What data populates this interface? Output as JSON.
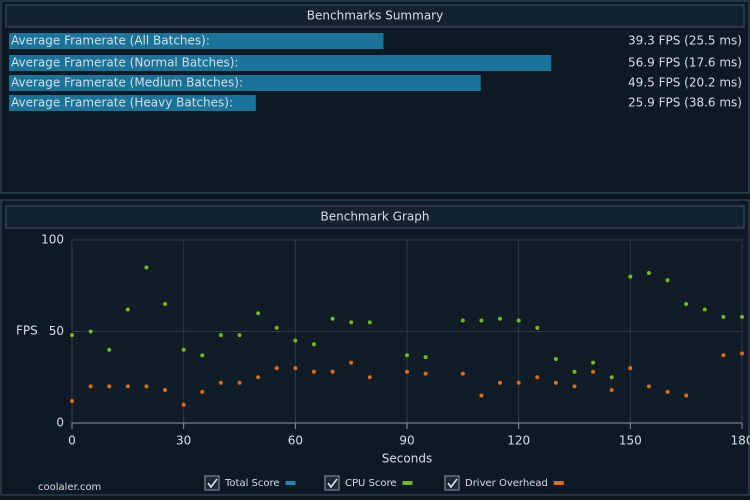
{
  "summary": {
    "title": "Benchmarks Summary",
    "rows": [
      {
        "label": "Average Framerate (All Batches):",
        "fps": 39.3,
        "value_label": "39.3 FPS (25.5 ms)"
      },
      {
        "label": "Average Framerate (Normal Batches):",
        "fps": 56.9,
        "value_label": "56.9 FPS (17.6 ms)"
      },
      {
        "label": "Average Framerate (Medium Batches):",
        "fps": 49.5,
        "value_label": "49.5 FPS (20.2 ms)"
      },
      {
        "label": "Average Framerate (Heavy Batches):",
        "fps": 25.9,
        "value_label": "25.9 FPS (38.6 ms)"
      }
    ]
  },
  "watermark": "coolaler.com",
  "chart_data": {
    "type": "scatter",
    "title": "Benchmark Graph",
    "x_label": "Seconds",
    "y_label": "FPS",
    "x": [
      0,
      5,
      10,
      15,
      20,
      25,
      30,
      35,
      40,
      45,
      50,
      55,
      60,
      65,
      70,
      75,
      80,
      85,
      90,
      95,
      100,
      105,
      110,
      115,
      120,
      125,
      130,
      135,
      140,
      145,
      150,
      155,
      160,
      165,
      170,
      175,
      180
    ],
    "series": [
      {
        "name": "Total Score",
        "color": "#1a8ab5",
        "values": [
          null,
          null,
          null,
          null,
          null,
          null,
          null,
          null,
          null,
          null,
          null,
          null,
          null,
          null,
          null,
          null,
          null,
          null,
          null,
          null,
          null,
          null,
          null,
          null,
          null,
          null,
          null,
          null,
          null,
          null,
          null,
          null,
          null,
          null,
          null,
          null,
          null
        ]
      },
      {
        "name": "CPU Score",
        "color": "#7ab51d",
        "values": [
          48,
          50,
          40,
          62,
          85,
          65,
          40,
          37,
          48,
          48,
          60,
          52,
          45,
          43,
          57,
          55,
          55,
          null,
          37,
          36,
          null,
          56,
          56,
          57,
          56,
          52,
          35,
          28,
          33,
          25,
          80,
          82,
          78,
          65,
          62,
          58,
          58
        ]
      },
      {
        "name": "Driver Overhead",
        "color": "#e06a1a",
        "values": [
          12,
          20,
          20,
          20,
          20,
          18,
          10,
          17,
          22,
          22,
          25,
          30,
          30,
          28,
          28,
          33,
          25,
          null,
          28,
          27,
          null,
          27,
          15,
          22,
          22,
          25,
          22,
          20,
          28,
          18,
          30,
          20,
          17,
          15,
          null,
          37,
          38
        ]
      }
    ],
    "xlim": [
      0,
      180
    ],
    "xticks": [
      0,
      30,
      60,
      90,
      120,
      150,
      180
    ],
    "ylim": [
      0,
      100
    ],
    "yticks": [
      0,
      50,
      100
    ],
    "grid": true
  }
}
